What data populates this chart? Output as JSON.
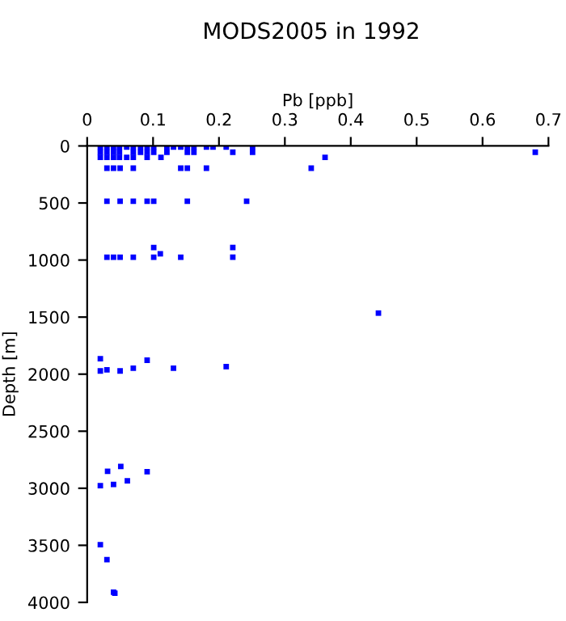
{
  "chart_data": {
    "type": "scatter",
    "title": "MODS2005 in 1992",
    "xlabel": "Pb [ppb]",
    "ylabel": "Depth [m]",
    "series": [
      {
        "color": "#0000ff",
        "marker": "square",
        "x": [
          0.02,
          0.03,
          0.04,
          0.049,
          0.06,
          0.07,
          0.081,
          0.091,
          0.101,
          0.121,
          0.131,
          0.142,
          0.152,
          0.162,
          0.181,
          0.191,
          0.211,
          0.251,
          0.02,
          0.03,
          0.04,
          0.049,
          0.07,
          0.081,
          0.091,
          0.101,
          0.121,
          0.152,
          0.162,
          0.221,
          0.251,
          0.68,
          0.02,
          0.03,
          0.04,
          0.049,
          0.06,
          0.07,
          0.091,
          0.112,
          0.361,
          0.03,
          0.04,
          0.05,
          0.07,
          0.142,
          0.152,
          0.181,
          0.34,
          0.03,
          0.05,
          0.07,
          0.091,
          0.101,
          0.152,
          0.242,
          0.101,
          0.221,
          0.111,
          0.03,
          0.04,
          0.05,
          0.07,
          0.101,
          0.142,
          0.221,
          0.442,
          0.02,
          0.02,
          0.03,
          0.05,
          0.07,
          0.091,
          0.131,
          0.211,
          0.02,
          0.031,
          0.04,
          0.051,
          0.061,
          0.091,
          0.02,
          0.03,
          0.04,
          0.042
        ],
        "values": [
          10,
          10,
          10,
          10,
          10,
          10,
          10,
          10,
          10,
          10,
          10,
          10,
          10,
          10,
          10,
          10,
          10,
          10,
          55,
          55,
          55,
          55,
          55,
          55,
          55,
          55,
          55,
          55,
          55,
          55,
          55,
          55,
          100,
          100,
          100,
          100,
          100,
          100,
          100,
          100,
          100,
          195,
          195,
          195,
          195,
          195,
          195,
          195,
          195,
          485,
          485,
          485,
          485,
          485,
          485,
          485,
          890,
          890,
          945,
          975,
          975,
          975,
          975,
          975,
          975,
          975,
          1465,
          1864,
          1972,
          1962,
          1972,
          1948,
          1878,
          1948,
          1934,
          2977,
          2851,
          2967,
          2809,
          2935,
          2855,
          3495,
          3626,
          3911,
          3920
        ]
      }
    ],
    "xlim": [
      0,
      0.7
    ],
    "xticks": [
      0,
      0.1,
      0.2,
      0.3,
      0.4,
      0.5,
      0.6,
      0.7
    ],
    "ylim": [
      4000,
      0
    ],
    "yticks": [
      0,
      500,
      1000,
      1500,
      2000,
      2500,
      3000,
      3500,
      4000
    ],
    "grid": false,
    "legend": false
  }
}
